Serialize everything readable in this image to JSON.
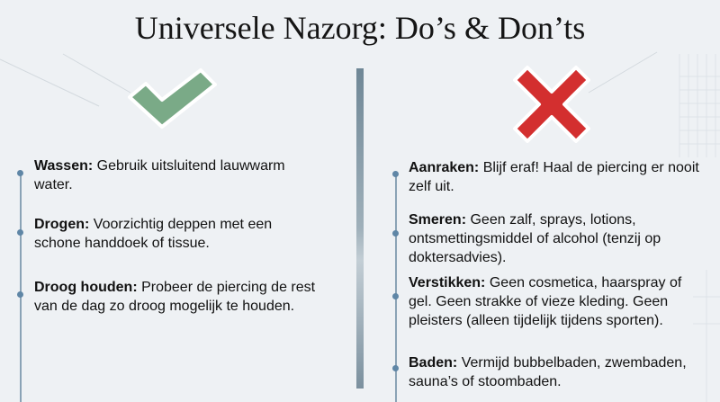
{
  "title": "Universele Nazorg: Do’s & Don’ts",
  "colors": {
    "check": "#7aaa87",
    "cross": "#d32f2f",
    "accent": "#5f86a6"
  },
  "dos": {
    "icon": "check-icon",
    "items": [
      {
        "label": "Wassen:",
        "text": "Gebruik uitsluitend lauwwarm water."
      },
      {
        "label": "Drogen:",
        "text": "Voorzichtig deppen met een schone handdoek of tissue."
      },
      {
        "label": "Droog houden:",
        "text": "Probeer de piercing de rest van de dag zo droog mogelijk te houden."
      }
    ]
  },
  "donts": {
    "icon": "cross-icon",
    "items": [
      {
        "label": "Aanraken:",
        "text": "Blijf eraf! Haal de piercing er nooit zelf uit."
      },
      {
        "label": "Smeren:",
        "text": "Geen zalf, sprays, lotions, ontsmettingsmiddel of alcohol (tenzij op doktersadvies)."
      },
      {
        "label": "Verstikken:",
        "text": "Geen cosmetica, haarspray of gel. Geen strakke of vieze kleding. Geen pleisters (alleen tijdelijk tijdens sporten)."
      },
      {
        "label": "Baden:",
        "text": "Vermijd bubbelbaden, zwembaden, sauna’s of stoombaden."
      }
    ]
  }
}
